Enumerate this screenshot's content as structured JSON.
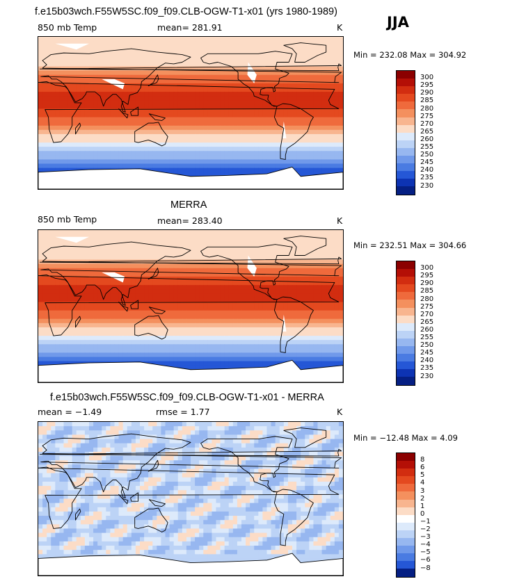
{
  "season": "JJA",
  "units": "K",
  "panels": [
    {
      "id": "model",
      "title": "f.e15b03wch.F55W5SC.f09_f09.CLB-OGW-T1-x01 (yrs 1980-1989)",
      "left_label": "850 mb Temp",
      "stat_label": "mean= 281.91",
      "units": "K",
      "minmax": "Min = 232.08 Max = 304.92",
      "field": "temp"
    },
    {
      "id": "obs",
      "title": "MERRA",
      "left_label": "850 mb Temp",
      "stat_label": "mean= 283.40",
      "units": "K",
      "minmax": "Min = 232.51 Max = 304.66",
      "field": "temp"
    },
    {
      "id": "diff",
      "title": "f.e15b03wch.F55W5SC.f09_f09.CLB-OGW-T1-x01 - MERRA",
      "left_label": "mean =   −1.49",
      "stat_label": "rmse =    1.77",
      "units": "K",
      "minmax": "Min = −12.48 Max =    4.09",
      "field": "diff"
    }
  ],
  "temp_colorbar": {
    "levels": [
      "300",
      "295",
      "290",
      "285",
      "280",
      "275",
      "270",
      "265",
      "260",
      "255",
      "250",
      "245",
      "240",
      "235",
      "230"
    ],
    "colors": [
      "#8b0000",
      "#b40f06",
      "#d22d10",
      "#e4491f",
      "#ef6a3c",
      "#f4905e",
      "#f8b58f",
      "#fcdcc6",
      "#ddeafb",
      "#bcd3f6",
      "#97b7f0",
      "#7099ea",
      "#4a7be2",
      "#2557d6",
      "#0d33b3",
      "#051f83"
    ]
  },
  "diff_colorbar": {
    "levels": [
      "8",
      "6",
      "5",
      "4",
      "3",
      "2",
      "1",
      "0",
      "−1",
      "−2",
      "−3",
      "−4",
      "−5",
      "−6",
      "−8"
    ],
    "colors": [
      "#8b0000",
      "#b40f06",
      "#d22d10",
      "#e4491f",
      "#ef6a3c",
      "#f4905e",
      "#f8b58f",
      "#fcdcc6",
      "#ffffff",
      "#ddeafb",
      "#bcd3f6",
      "#97b7f0",
      "#7099ea",
      "#4a7be2",
      "#2557d6",
      "#051f83"
    ]
  }
}
